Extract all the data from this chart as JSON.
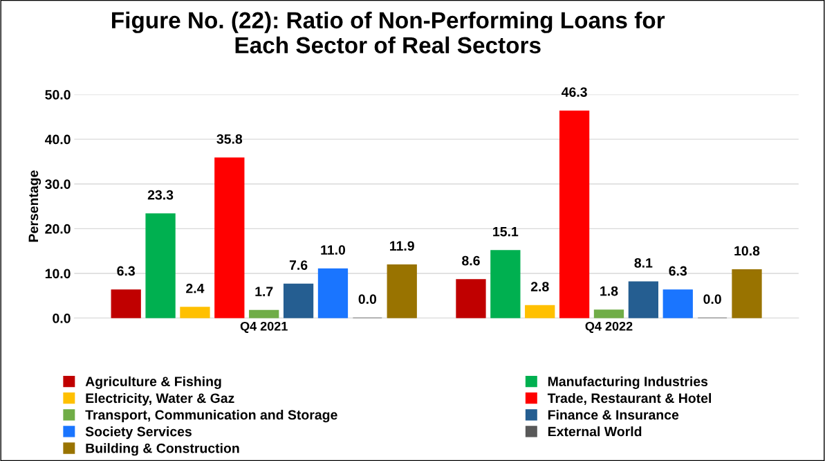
{
  "chart_data": {
    "type": "bar",
    "title": "Figure No. (22): Ratio of Non-Performing Loans for\nEach Sector of Real Sectors",
    "ylabel": "Persentage",
    "categories": [
      "Q4 2021",
      "Q4 2022"
    ],
    "series": [
      {
        "name": "Agriculture & Fishing",
        "color": "#c00000",
        "values": [
          6.3,
          8.6
        ],
        "value_labels": [
          "6.3",
          "8.6"
        ]
      },
      {
        "name": "Manufacturing Industries",
        "color": "#00b050",
        "values": [
          23.3,
          15.1
        ],
        "value_labels": [
          "23.3",
          "15.1"
        ]
      },
      {
        "name": "Electricity, Water & Gaz",
        "color": "#ffc000",
        "values": [
          2.4,
          2.8
        ],
        "value_labels": [
          "2.4",
          "2.8"
        ]
      },
      {
        "name": "Trade, Restaurant & Hotel",
        "color": "#ff0000",
        "values": [
          35.8,
          46.3
        ],
        "value_labels": [
          "35.8",
          "46.3"
        ]
      },
      {
        "name": "Transport, Communication and Storage",
        "color": "#70ad47",
        "values": [
          1.7,
          1.8
        ],
        "value_labels": [
          "1.7",
          "1.8"
        ]
      },
      {
        "name": "Finance & Insurance",
        "color": "#255e91",
        "values": [
          7.6,
          8.1
        ],
        "value_labels": [
          "7.6",
          "8.1"
        ]
      },
      {
        "name": "Society Services",
        "color": "#1a75ff",
        "values": [
          11.0,
          6.3
        ],
        "value_labels": [
          "11.0",
          "6.3"
        ]
      },
      {
        "name": "External World",
        "color": "#595959",
        "values": [
          0.0,
          0.0
        ],
        "value_labels": [
          "0.0",
          "0.0"
        ]
      },
      {
        "name": "Building & Construction",
        "color": "#997300",
        "values": [
          11.9,
          10.8
        ],
        "value_labels": [
          "11.9",
          "10.8"
        ]
      }
    ],
    "ylim": [
      0,
      50
    ],
    "yticks": [
      {
        "value": 0,
        "label": "0.0"
      },
      {
        "value": 10,
        "label": "10.0"
      },
      {
        "value": 20,
        "label": "20.0"
      },
      {
        "value": 30,
        "label": "30.0"
      },
      {
        "value": 40,
        "label": "40.0"
      },
      {
        "value": 50,
        "label": "50.0"
      }
    ],
    "grid": "y",
    "legend": "bottom"
  }
}
